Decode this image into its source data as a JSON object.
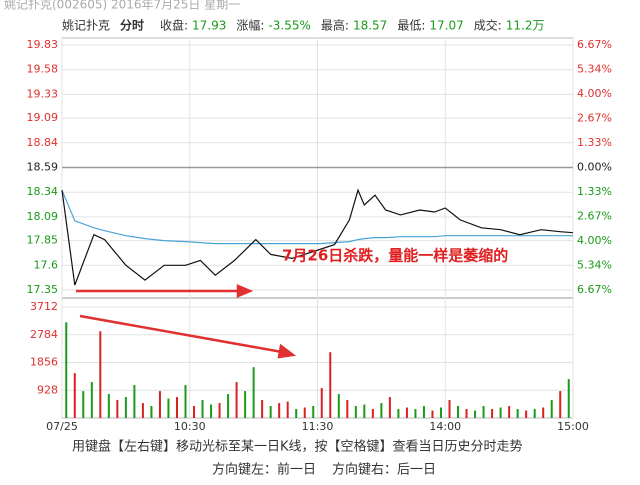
{
  "header": {
    "window_title": "姚记扑克(002605) 2016年7月25日 星期一",
    "stock": "姚记扑克",
    "mode": "分时",
    "items": [
      {
        "label": "收盘:",
        "value": "17.93",
        "color": "#1a9a1a"
      },
      {
        "label": "涨幅:",
        "value": "-3.55%",
        "color": "#1a9a1a"
      },
      {
        "label": "最高:",
        "value": "18.57",
        "color": "#1a9a1a"
      },
      {
        "label": "最低:",
        "value": "17.07",
        "color": "#1a9a1a"
      },
      {
        "label": "成交:",
        "value": "11.2万",
        "color": "#1a9a1a"
      }
    ]
  },
  "chart_data": [
    {
      "type": "line",
      "annotation": "7月26日杀跌，量能一样是萎缩的",
      "x": [
        0,
        6,
        15,
        20,
        30,
        39,
        48,
        58,
        65,
        72,
        81,
        91,
        98,
        108,
        121,
        128,
        135,
        139,
        142,
        147,
        152,
        159,
        168,
        175,
        180,
        187,
        197,
        206,
        215,
        225,
        234,
        240
      ],
      "xlim": [
        0,
        240
      ],
      "xticks": [
        0,
        60,
        120,
        180,
        240
      ],
      "ylim": [
        17.35,
        19.83
      ],
      "yticks": [
        19.83,
        19.58,
        19.33,
        19.09,
        18.84,
        18.59,
        18.34,
        18.09,
        17.85,
        17.6,
        {
          "value": 17.35,
          "label": "17.35"
        }
      ],
      "y2lim": [
        -6.67,
        6.67
      ],
      "y2ticks": [
        {
          "value": 6.67,
          "label": "6.67%"
        },
        {
          "value": 5.34,
          "label": "5.34%"
        },
        {
          "value": 4.0,
          "label": "4.00%"
        },
        {
          "value": 2.67,
          "label": "2.67%"
        },
        {
          "value": 1.33,
          "label": "1.33%"
        },
        {
          "value": 0,
          "label": "0.00%"
        },
        {
          "value": -1.33,
          "label": "1.33%"
        },
        {
          "value": -2.67,
          "label": "2.67%"
        },
        {
          "value": -4.0,
          "label": "4.00%"
        },
        {
          "value": -5.34,
          "label": "5.34%"
        },
        {
          "value": -6.67,
          "label": "6.67%"
        }
      ],
      "grid": true,
      "series": [
        {
          "name": "price",
          "color": "#111111",
          "values": [
            18.36,
            17.4,
            17.91,
            17.86,
            17.6,
            17.45,
            17.6,
            17.6,
            17.65,
            17.5,
            17.65,
            17.86,
            17.71,
            17.67,
            17.76,
            17.81,
            18.06,
            18.36,
            18.21,
            18.31,
            18.16,
            18.11,
            18.16,
            18.14,
            18.18,
            18.06,
            17.98,
            17.96,
            17.91,
            17.96,
            17.94,
            17.93
          ]
        },
        {
          "name": "average",
          "color": "#4aa3d8",
          "values": [
            18.36,
            18.05,
            17.98,
            17.95,
            17.9,
            17.87,
            17.85,
            17.84,
            17.83,
            17.82,
            17.82,
            17.82,
            17.82,
            17.82,
            17.82,
            17.83,
            17.84,
            17.86,
            17.87,
            17.88,
            17.88,
            17.89,
            17.89,
            17.89,
            17.9,
            17.9,
            17.9,
            17.9,
            17.9,
            17.9,
            17.9,
            17.9
          ]
        }
      ]
    },
    {
      "type": "bar",
      "x": [
        2,
        6,
        10,
        14,
        18,
        22,
        26,
        30,
        34,
        38,
        42,
        46,
        50,
        54,
        58,
        62,
        66,
        70,
        74,
        78,
        82,
        86,
        90,
        94,
        98,
        102,
        106,
        110,
        114,
        118,
        122,
        126,
        130,
        134,
        138,
        142,
        146,
        150,
        154,
        158,
        162,
        166,
        170,
        174,
        178,
        182,
        186,
        190,
        194,
        198,
        202,
        206,
        210,
        214,
        218,
        222,
        226,
        230,
        234,
        238
      ],
      "values": [
        3200,
        1500,
        900,
        1200,
        2900,
        800,
        600,
        700,
        1100,
        500,
        400,
        900,
        650,
        700,
        1100,
        400,
        600,
        450,
        500,
        800,
        1200,
        900,
        1700,
        600,
        400,
        500,
        550,
        300,
        350,
        400,
        1000,
        2200,
        800,
        600,
        400,
        450,
        300,
        500,
        700,
        300,
        350,
        300,
        400,
        250,
        350,
        600,
        400,
        300,
        250,
        400,
        300,
        350,
        400,
        300,
        250,
        300,
        350,
        600,
        900,
        1300
      ],
      "bar_colors": [
        "#1a9a1a",
        "#d82020",
        "#1a9a1a",
        "#1a9a1a",
        "#d82020",
        "#1a9a1a",
        "#d82020",
        "#1a9a1a",
        "#1a9a1a",
        "#d82020",
        "#1a9a1a",
        "#d82020",
        "#1a9a1a",
        "#d82020",
        "#1a9a1a",
        "#d82020",
        "#1a9a1a",
        "#1a9a1a",
        "#d82020",
        "#1a9a1a",
        "#d82020",
        "#1a9a1a",
        "#1a9a1a",
        "#d82020",
        "#1a9a1a",
        "#d82020",
        "#d82020",
        "#1a9a1a",
        "#d82020",
        "#1a9a1a",
        "#d82020",
        "#d82020",
        "#1a9a1a",
        "#d82020",
        "#1a9a1a",
        "#1a9a1a",
        "#d82020",
        "#1a9a1a",
        "#d82020",
        "#1a9a1a",
        "#d82020",
        "#1a9a1a",
        "#1a9a1a",
        "#d82020",
        "#1a9a1a",
        "#d82020",
        "#1a9a1a",
        "#d82020",
        "#1a9a1a",
        "#1a9a1a",
        "#d82020",
        "#1a9a1a",
        "#d82020",
        "#1a9a1a",
        "#d82020",
        "#1a9a1a",
        "#d82020",
        "#1a9a1a",
        "#d82020",
        "#1a9a1a"
      ],
      "xlim": [
        0,
        240
      ],
      "xticks": [
        {
          "value": 0,
          "label": "07/25"
        },
        {
          "value": 60,
          "label": "10:30"
        },
        {
          "value": 120,
          "label": "11:30"
        },
        {
          "value": 180,
          "label": "14:00"
        },
        {
          "value": 240,
          "label": "15:00"
        }
      ],
      "ylim": [
        0,
        3712
      ],
      "yticks": [
        928,
        1856,
        2784,
        3712
      ],
      "grid": true
    }
  ],
  "footer": {
    "hint": "用键盘【左右键】移动光标至某一日K线，按【空格键】查看当日历史分时走势",
    "prev": "方向键左：前一日",
    "next": "方向键右：后一日"
  }
}
